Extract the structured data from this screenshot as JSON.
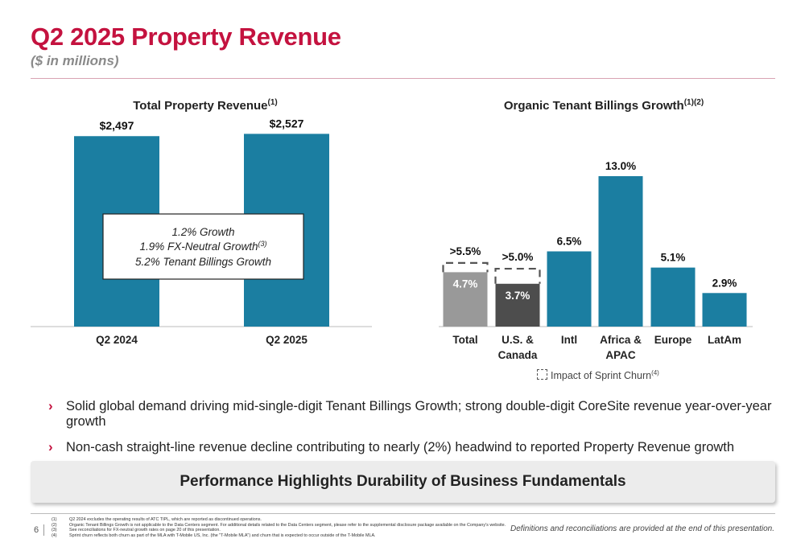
{
  "page": {
    "title": "Q2 2025 Property Revenue",
    "subtitle": "($ in millions)",
    "page_number": "6",
    "footer_right": "Definitions and reconciliations are provided at the end of this presentation."
  },
  "bullets": [
    "Solid global demand driving mid-single-digit Tenant Billings Growth; strong double-digit CoreSite revenue year-over-year growth",
    "Non-cash straight-line revenue decline contributing to nearly (2%) headwind to reported Property Revenue growth"
  ],
  "banner": "Performance Highlights Durability of Business Fundamentals",
  "footnotes": [
    {
      "num": "(1)",
      "text": "Q2 2024 excludes the operating results of ATC TIPL, which are reported as discontinued operations."
    },
    {
      "num": "(2)",
      "text": "Organic Tenant Billings Growth is not applicable to the Data Centers segment. For additional details related to the Data Centers segment, please refer to the supplemental disclosure package available on the Company's website."
    },
    {
      "num": "(3)",
      "text": "See reconciliations for FX-neutral growth rates on page 20 of this presentation."
    },
    {
      "num": "(4)",
      "text": "Sprint churn reflects both churn as part of the MLA with T-Mobile US, Inc. (the \"T-Mobile MLA\") and churn that is expected to occur outside of the T-Mobile MLA."
    }
  ],
  "chart_data": [
    {
      "type": "bar",
      "title": "Total Property Revenue",
      "title_sup": "(1)",
      "categories": [
        "Q2 2024",
        "Q2 2025"
      ],
      "values": [
        2497,
        2527
      ],
      "value_labels": [
        "$2,497",
        "$2,527"
      ],
      "ylim": [
        0,
        2700
      ],
      "color": "#1b7ea1",
      "callout": {
        "line1": "1.2% Growth",
        "line2": "1.9% FX-Neutral Growth",
        "line2_sup": "(3)",
        "line3": "5.2% Tenant Billings Growth"
      }
    },
    {
      "type": "bar",
      "title": "Organic Tenant Billings Growth",
      "title_sup": "(1)(2)",
      "categories": [
        "Total",
        "U.S. & Canada",
        "Intl",
        "Africa & APAC",
        "Europe",
        "LatAm"
      ],
      "values": [
        4.7,
        3.7,
        6.5,
        13.0,
        5.1,
        2.9
      ],
      "value_labels": [
        "4.7%",
        "3.7%",
        "6.5%",
        "13.0%",
        "5.1%",
        "2.9%"
      ],
      "sprint_churn_impact_labels": [
        ">5.5%",
        ">5.0%",
        null,
        null,
        null,
        null
      ],
      "sprint_churn_impact_values": [
        5.5,
        5.0,
        null,
        null,
        null,
        null
      ],
      "colors": [
        "#999999",
        "#4d4d4d",
        "#1b7ea1",
        "#1b7ea1",
        "#1b7ea1",
        "#1b7ea1"
      ],
      "ylim": [
        0,
        14
      ],
      "legend": "Impact of Sprint Churn",
      "legend_sup": "(4)"
    }
  ]
}
